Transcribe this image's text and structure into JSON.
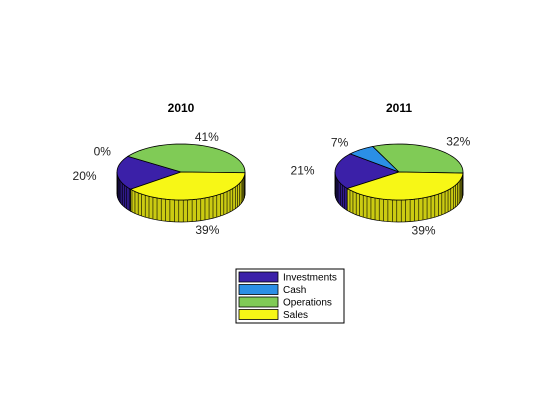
{
  "chart_data": [
    {
      "type": "pie",
      "style": "3d",
      "title": "2010",
      "slices": [
        {
          "label": "Investments",
          "value": 20,
          "display": "20%"
        },
        {
          "label": "Cash",
          "value": 0,
          "display": "0%"
        },
        {
          "label": "Operations",
          "value": 41,
          "display": "41%"
        },
        {
          "label": "Sales",
          "value": 39,
          "display": "39%"
        }
      ]
    },
    {
      "type": "pie",
      "style": "3d",
      "title": "2011",
      "slices": [
        {
          "label": "Investments",
          "value": 21,
          "display": "21%"
        },
        {
          "label": "Cash",
          "value": 7,
          "display": "7%"
        },
        {
          "label": "Operations",
          "value": 32,
          "display": "32%"
        },
        {
          "label": "Sales",
          "value": 39,
          "display": "39%"
        }
      ]
    }
  ],
  "legend": {
    "placement": "bottom-center",
    "items": [
      {
        "label": "Investments",
        "color": "#3b20a8"
      },
      {
        "label": "Cash",
        "color": "#2b8fe6"
      },
      {
        "label": "Operations",
        "color": "#80cb56"
      },
      {
        "label": "Sales",
        "color": "#f7f716"
      }
    ]
  }
}
